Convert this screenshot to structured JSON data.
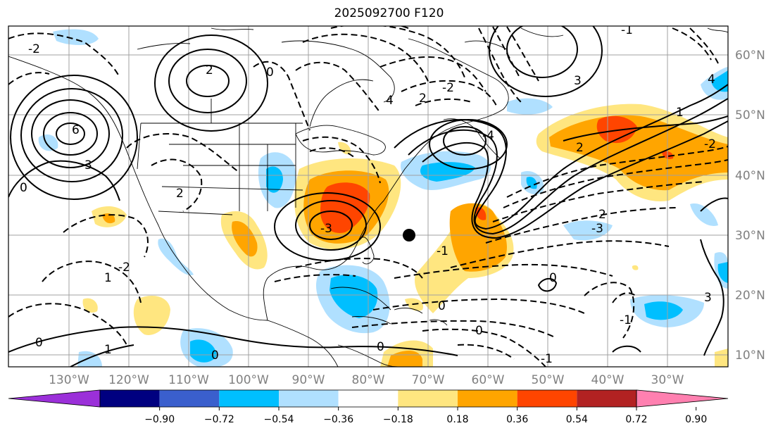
{
  "title": "2025092700 F120",
  "longitude_labels": [
    "130°W",
    "120°W",
    "110°W",
    "100°W",
    "90°W",
    "80°W",
    "70°W",
    "60°W",
    "50°W",
    "40°W",
    "30°W"
  ],
  "latitude_labels": [
    "60°N",
    "50°N",
    "40°N",
    "30°N",
    "20°N",
    "10°N"
  ],
  "colorbar": {
    "ticks": [
      "−0.90",
      "−0.72",
      "−0.54",
      "−0.36",
      "−0.18",
      "0.18",
      "0.36",
      "0.54",
      "0.72",
      "0.90"
    ],
    "colors": [
      "#9b30d9",
      "#000080",
      "#3a5fcd",
      "#00bfff",
      "#b0e0ff",
      "#ffffff",
      "#ffe680",
      "#ffa500",
      "#ff4500",
      "#b22222",
      "#ff80b0"
    ]
  },
  "contour_labels": [
    "-2",
    "2",
    "0",
    "4",
    "3",
    "-1",
    "1",
    "-2",
    "6",
    "3",
    "0",
    "2",
    "-3",
    "-4",
    "0",
    "-1",
    "1",
    "0",
    "-2",
    "2",
    "-3",
    "2",
    "0",
    "-1",
    "0",
    "1",
    "0",
    "3",
    "2",
    "-2",
    "4",
    "0",
    "-1"
  ],
  "marker": {
    "type": "filled-circle",
    "lon": "74°W",
    "lat": "30°N"
  }
}
